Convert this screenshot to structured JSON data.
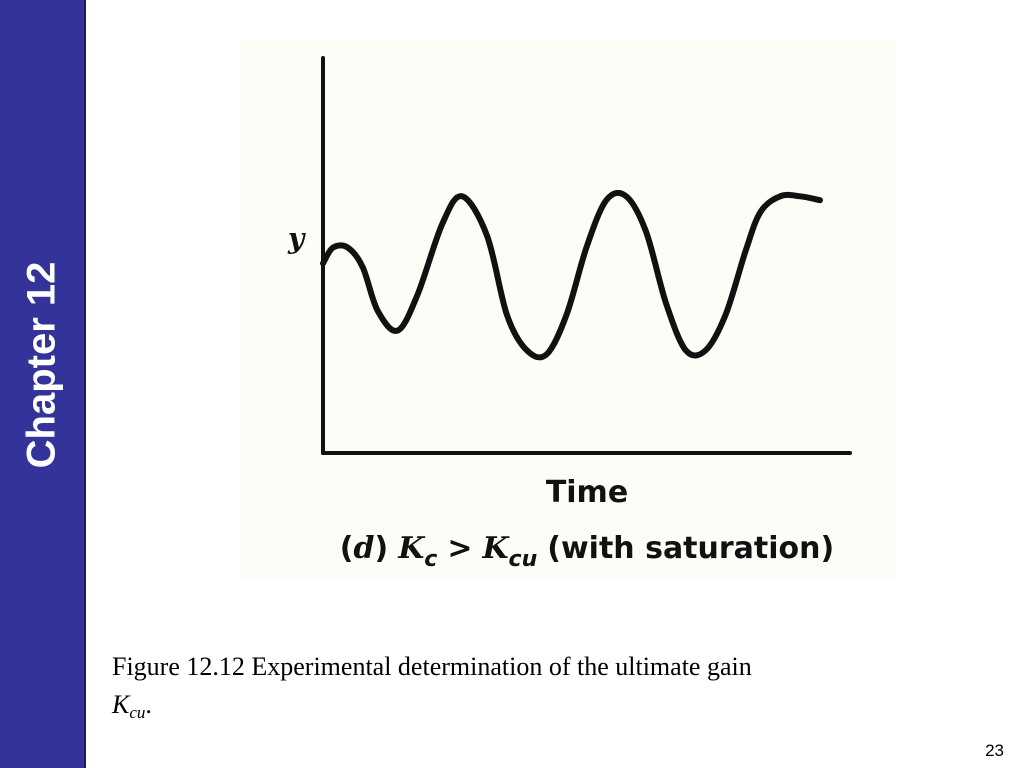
{
  "sidebar": {
    "chapter_label": "Chapter 12",
    "color": "#333399"
  },
  "chart_data": {
    "type": "line",
    "ylabel": "y",
    "xlabel": "Time",
    "panel_prefix": "(",
    "panel_letter": "d",
    "panel_suffix": ")",
    "k_left": "K",
    "k_left_sub": "c",
    "comparator": ">",
    "k_right": "K",
    "k_right_sub": "cu",
    "condition": "(with saturation)",
    "axis_ticks": false,
    "grid": false,
    "series": [
      {
        "x": [
          0,
          0.02,
          0.05,
          0.08,
          0.11,
          0.15,
          0.19,
          0.24,
          0.28,
          0.33,
          0.37,
          0.41,
          0.45,
          0.49,
          0.53,
          0.57,
          0.61,
          0.65,
          0.69,
          0.73,
          0.77,
          0.81,
          0.85,
          0.88,
          0.92,
          0.96,
          1.0
        ],
        "values": [
          0.48,
          0.52,
          0.52,
          0.47,
          0.36,
          0.31,
          0.4,
          0.58,
          0.65,
          0.55,
          0.35,
          0.26,
          0.25,
          0.35,
          0.52,
          0.64,
          0.65,
          0.56,
          0.38,
          0.26,
          0.26,
          0.35,
          0.51,
          0.61,
          0.65,
          0.65,
          0.64
        ]
      }
    ]
  },
  "caption": {
    "text": "Figure 12.12 Experimental determination of the ultimate gain",
    "k": "K",
    "k_sub": "cu",
    "end": "."
  },
  "page_number": "23"
}
